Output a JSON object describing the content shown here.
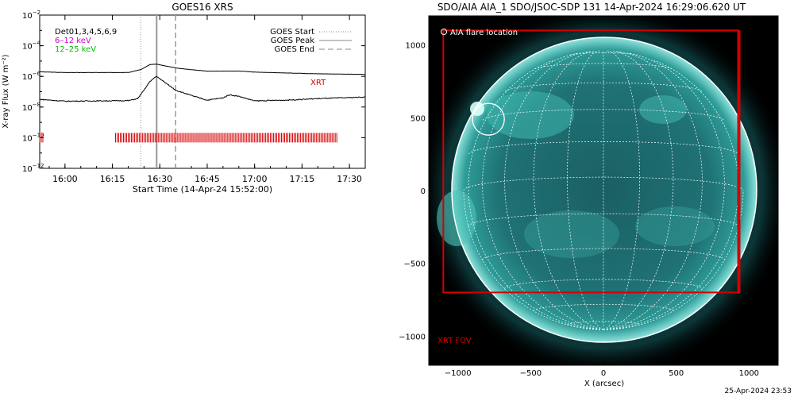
{
  "chart_data": [
    {
      "type": "line",
      "title": "GOES16 XRS",
      "xlabel": "Start Time (14-Apr-24 15:52:00)",
      "ylabel": "X-ray Flux (W m⁻²)",
      "y_scale": "log",
      "ylim": [
        1e-12,
        0.01
      ],
      "xlim_minutes_after_1600": [
        -8,
        95
      ],
      "x_tick_labels": [
        "16:00",
        "16:15",
        "16:30",
        "16:45",
        "17:00",
        "17:15",
        "17:30"
      ],
      "x_ticks_minutes_after_1600": [
        0,
        15,
        30,
        45,
        60,
        75,
        90
      ],
      "y_tick_exponents": [
        -2,
        -4,
        -6,
        -8,
        -10,
        -12
      ],
      "legend_left": {
        "detectors": "Det01,3,4,5,6,9",
        "low_band": "6–12 keV",
        "high_band": "12–25 keV"
      },
      "legend_right": {
        "start": "GOES Start",
        "peak": "GOES Peak",
        "end": "GOES End"
      },
      "flare_times": {
        "start": 24,
        "peak": 29,
        "end": 35
      },
      "series": [
        {
          "name": "6–12 keV",
          "x": [
            -8,
            0,
            10,
            20,
            24,
            27,
            29,
            32,
            36,
            45,
            55,
            60,
            70,
            80,
            95
          ],
          "log_values": [
            -5.7,
            -5.75,
            -5.75,
            -5.75,
            -5.55,
            -5.22,
            -5.2,
            -5.33,
            -5.48,
            -5.66,
            -5.65,
            -5.72,
            -5.78,
            -5.83,
            -5.87
          ]
        },
        {
          "name": "12–25 keV",
          "x": [
            -8,
            0,
            10,
            20,
            23,
            25,
            27,
            29,
            32,
            35,
            40,
            45,
            50,
            52,
            55,
            60,
            70,
            80,
            95
          ],
          "log_values": [
            -7.5,
            -7.62,
            -7.6,
            -7.58,
            -7.45,
            -6.9,
            -6.3,
            -6.0,
            -6.45,
            -6.9,
            -7.25,
            -7.55,
            -7.4,
            -7.2,
            -7.3,
            -7.6,
            -7.55,
            -7.45,
            -7.35
          ]
        }
      ],
      "annotations": {
        "xrt_label": "XRT"
      },
      "xrt_markers": {
        "row_log_value": -10,
        "segments": [
          [
            -8,
            -7
          ],
          [
            16,
            86
          ]
        ]
      }
    },
    {
      "type": "image",
      "title": "SDO/AIA AIA_1 SDO/JSOC-SDP 131 14-Apr-2024 16:29:06.620 UT",
      "xlabel": "X (arcsec)",
      "xlim": [
        -1200,
        1200
      ],
      "ylim": [
        -1200,
        1200
      ],
      "x_ticks": [
        -1000,
        -500,
        0,
        500,
        1000
      ],
      "x_tick_labels": [
        "−1000",
        "−500",
        "0",
        "500",
        "1000"
      ],
      "y_ticks": [
        1000,
        500,
        0,
        -500,
        -1000
      ],
      "y_tick_labels": [
        "1000",
        "500",
        "0",
        "−500",
        "−1000"
      ],
      "legend_label": "AIA flare location",
      "flare_location": [
        -790,
        490
      ],
      "xrt_fov_label": "XRT FOV",
      "xrt_fov_box": {
        "x": [
          -1100,
          930
        ],
        "y": [
          -700,
          1100
        ]
      },
      "solar_radius_arcsec": 960,
      "colors": {
        "disk": "#31a8a3",
        "fov": "#d40000",
        "grid": "#ffffff"
      }
    }
  ],
  "footer": {
    "timestamp": "25-Apr-2024 23:53"
  }
}
